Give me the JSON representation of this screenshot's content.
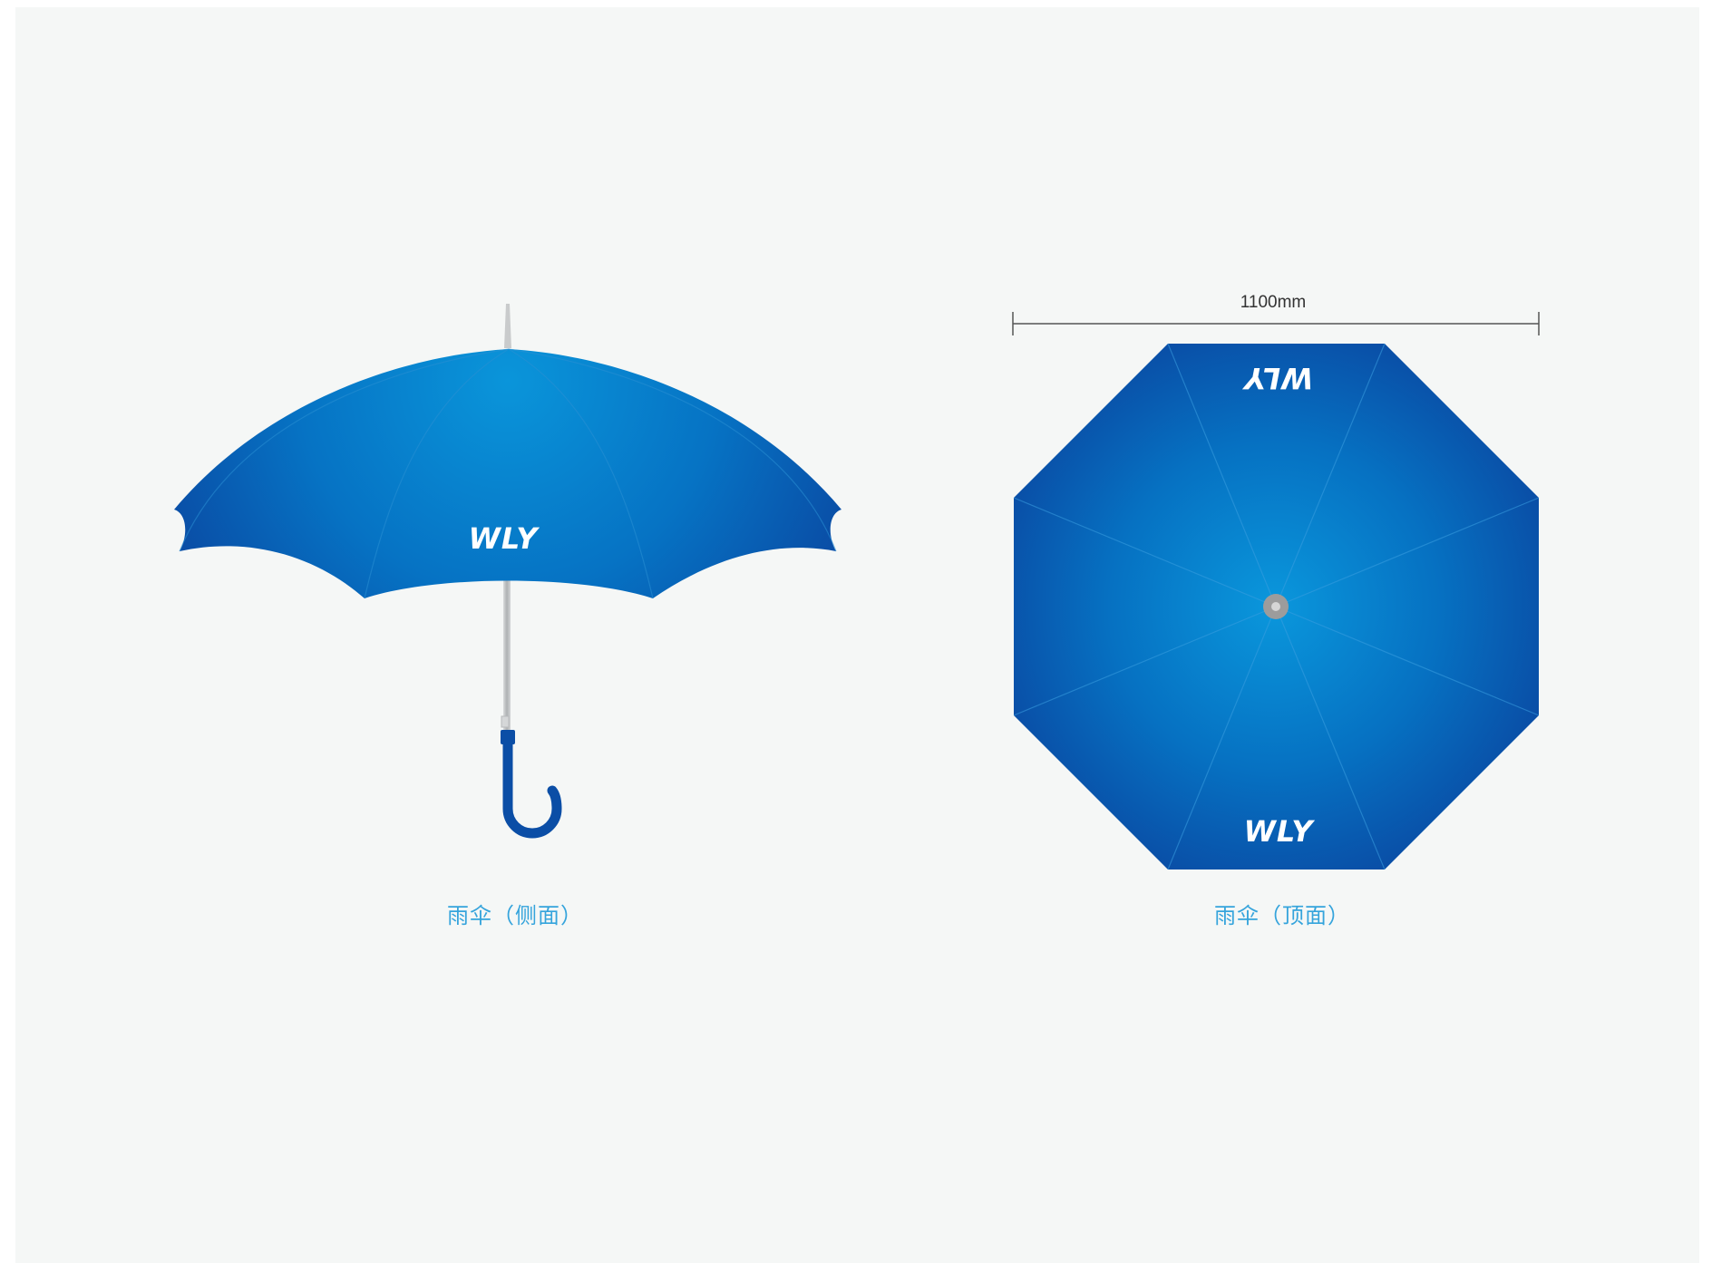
{
  "colors": {
    "canopy_light": "#0a92d8",
    "canopy_dark": "#0a4aa3",
    "handle": "#0b4ea6",
    "caption": "#35a4dc",
    "shaft": "#c7c9cb",
    "hub": "#9c9c9c",
    "dimension_line": "#555555"
  },
  "side_view": {
    "logo_text": "WLY",
    "caption": "雨伞（侧面）"
  },
  "top_view": {
    "logo_text_top": "WLY",
    "logo_text_bottom": "WLY",
    "dimension_label": "1100mm",
    "caption": "雨伞（顶面）"
  }
}
